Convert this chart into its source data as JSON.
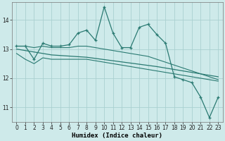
{
  "xlabel": "Humidex (Indice chaleur)",
  "background_color": "#ceeaea",
  "grid_color": "#aad0d0",
  "line_color": "#2a7a72",
  "x": [
    0,
    1,
    2,
    3,
    4,
    5,
    6,
    7,
    8,
    9,
    10,
    11,
    12,
    13,
    14,
    15,
    16,
    17,
    18,
    19,
    20,
    21,
    22,
    23
  ],
  "y_main": [
    13.1,
    13.1,
    12.65,
    13.2,
    13.1,
    13.1,
    13.15,
    13.55,
    13.65,
    13.3,
    14.45,
    13.55,
    13.05,
    13.05,
    13.75,
    13.85,
    13.5,
    13.2,
    12.05,
    11.95,
    11.85,
    11.35,
    10.65,
    11.35
  ],
  "y_upper": [
    13.1,
    13.1,
    13.05,
    13.1,
    13.05,
    13.05,
    13.05,
    13.1,
    13.1,
    13.05,
    13.0,
    12.95,
    12.9,
    12.85,
    12.8,
    12.75,
    12.65,
    12.55,
    12.45,
    12.35,
    12.25,
    12.15,
    12.05,
    11.95
  ],
  "y_lower": [
    12.85,
    12.65,
    12.5,
    12.7,
    12.65,
    12.65,
    12.65,
    12.65,
    12.65,
    12.6,
    12.55,
    12.5,
    12.45,
    12.4,
    12.35,
    12.3,
    12.25,
    12.2,
    12.15,
    12.1,
    12.05,
    12.0,
    11.95,
    11.9
  ],
  "y_trend": [
    13.0,
    12.95,
    12.9,
    12.85,
    12.8,
    12.78,
    12.76,
    12.74,
    12.72,
    12.68,
    12.64,
    12.6,
    12.56,
    12.52,
    12.48,
    12.44,
    12.4,
    12.35,
    12.3,
    12.25,
    12.2,
    12.15,
    12.1,
    12.05
  ],
  "ylim": [
    10.5,
    14.6
  ],
  "yticks": [
    11,
    12,
    13,
    14
  ],
  "xlim": [
    -0.5,
    23.5
  ],
  "xticks": [
    0,
    1,
    2,
    3,
    4,
    5,
    6,
    7,
    8,
    9,
    10,
    11,
    12,
    13,
    14,
    15,
    16,
    17,
    18,
    19,
    20,
    21,
    22,
    23
  ]
}
